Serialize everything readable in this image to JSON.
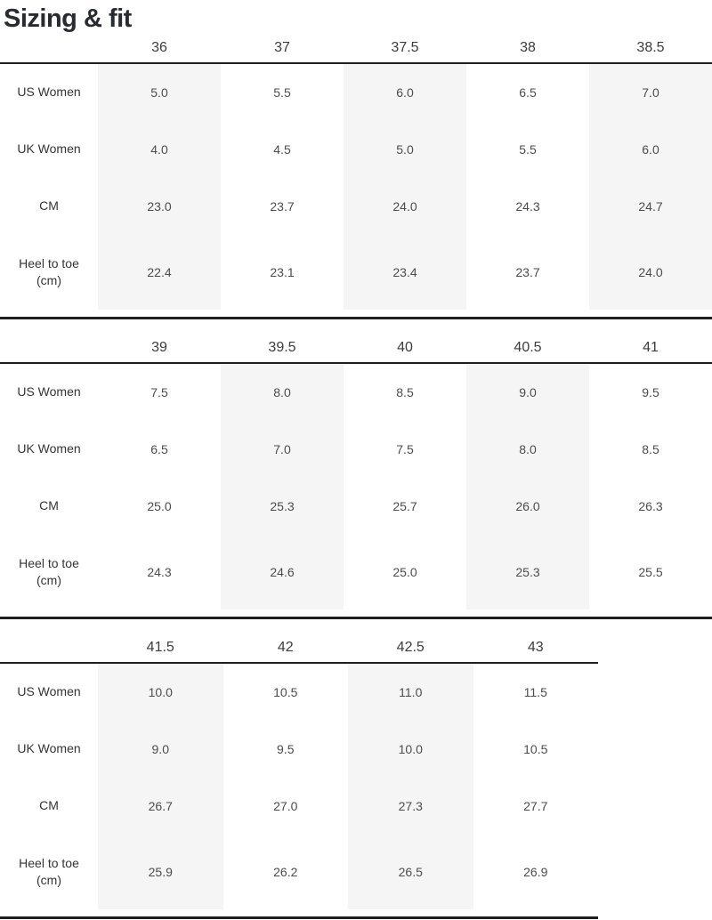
{
  "page": {
    "title": "Sizing & fit"
  },
  "colors": {
    "shade": "#f5f5f5",
    "border": "#1f1f1f",
    "title": "#282b31",
    "header-text": "#3c3c3c",
    "label-text": "#343434",
    "value-text": "#4c4c4c"
  },
  "tables": [
    {
      "sizes": [
        "36",
        "37",
        "37.5",
        "38",
        "38.5"
      ],
      "rows": [
        {
          "label": "US Women",
          "values": [
            "5.0",
            "5.5",
            "6.0",
            "6.5",
            "7.0"
          ]
        },
        {
          "label": "UK Women",
          "values": [
            "4.0",
            "4.5",
            "5.0",
            "5.5",
            "6.0"
          ]
        },
        {
          "label": "CM",
          "values": [
            "23.0",
            "23.7",
            "24.0",
            "24.3",
            "24.7"
          ]
        },
        {
          "label": "Heel to toe (cm)",
          "values": [
            "22.4",
            "23.1",
            "23.4",
            "23.7",
            "24.0"
          ]
        }
      ]
    },
    {
      "sizes": [
        "39",
        "39.5",
        "40",
        "40.5",
        "41"
      ],
      "rows": [
        {
          "label": "US Women",
          "values": [
            "7.5",
            "8.0",
            "8.5",
            "9.0",
            "9.5"
          ]
        },
        {
          "label": "UK Women",
          "values": [
            "6.5",
            "7.0",
            "7.5",
            "8.0",
            "8.5"
          ]
        },
        {
          "label": "CM",
          "values": [
            "25.0",
            "25.3",
            "25.7",
            "26.0",
            "26.3"
          ]
        },
        {
          "label": "Heel to toe (cm)",
          "values": [
            "24.3",
            "24.6",
            "25.0",
            "25.3",
            "25.5"
          ]
        }
      ]
    },
    {
      "sizes": [
        "41.5",
        "42",
        "42.5",
        "43"
      ],
      "rows": [
        {
          "label": "US Women",
          "values": [
            "10.0",
            "10.5",
            "11.0",
            "11.5"
          ]
        },
        {
          "label": "UK Women",
          "values": [
            "9.0",
            "9.5",
            "10.0",
            "10.5"
          ]
        },
        {
          "label": "CM",
          "values": [
            "26.7",
            "27.0",
            "27.3",
            "27.7"
          ]
        },
        {
          "label": "Heel to toe (cm)",
          "values": [
            "25.9",
            "26.2",
            "26.5",
            "26.9"
          ]
        }
      ]
    }
  ]
}
